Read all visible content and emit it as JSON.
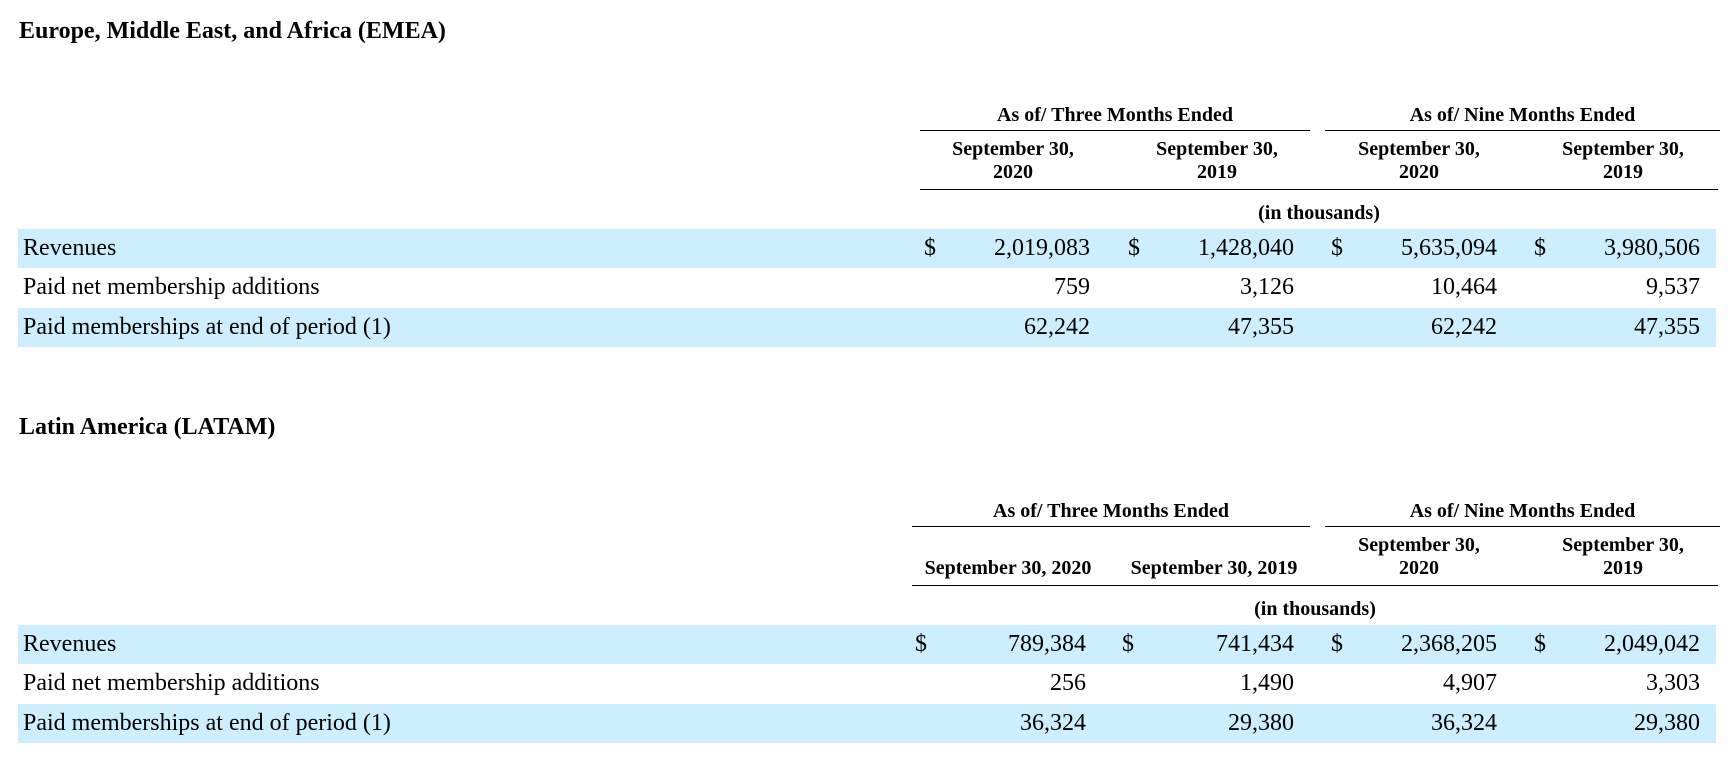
{
  "sections": [
    {
      "title": "Europe, Middle East, and Africa (EMEA)",
      "group_headers": [
        "As of/ Three Months Ended",
        "As of/ Nine Months Ended"
      ],
      "column_headers": [
        [
          "September 30,",
          "2020"
        ],
        [
          "September 30,",
          "2019"
        ],
        [
          "September 30,",
          "2020"
        ],
        [
          "September 30,",
          "2019"
        ]
      ],
      "units": "(in thousands)",
      "rows": [
        {
          "label": "Revenues",
          "currency": "$",
          "values": [
            "2,019,083",
            "1,428,040",
            "5,635,094",
            "3,980,506"
          ]
        },
        {
          "label": "Paid net membership additions",
          "currency": "",
          "values": [
            "759",
            "3,126",
            "10,464",
            "9,537"
          ]
        },
        {
          "label": "Paid memberships at end of period (1)",
          "currency": "",
          "values": [
            "62,242",
            "47,355",
            "62,242",
            "47,355"
          ]
        }
      ]
    },
    {
      "title": "Latin America (LATAM)",
      "group_headers": [
        "As of/ Three Months Ended",
        "As of/ Nine Months Ended"
      ],
      "column_headers": [
        [
          "September 30, 2020"
        ],
        [
          "September 30, 2019"
        ],
        [
          "September 30,",
          "2020"
        ],
        [
          "September 30,",
          "2019"
        ]
      ],
      "units": "(in thousands)",
      "rows": [
        {
          "label": "Revenues",
          "currency": "$",
          "values": [
            "789,384",
            "741,434",
            "2,368,205",
            "2,049,042"
          ]
        },
        {
          "label": "Paid net membership additions",
          "currency": "",
          "values": [
            "256",
            "1,490",
            "4,907",
            "3,303"
          ]
        },
        {
          "label": "Paid memberships at end of period (1)",
          "currency": "",
          "values": [
            "36,324",
            "29,380",
            "36,324",
            "29,380"
          ]
        }
      ]
    }
  ],
  "colors": {
    "row_band": "#cceeff",
    "text": "#000000"
  }
}
